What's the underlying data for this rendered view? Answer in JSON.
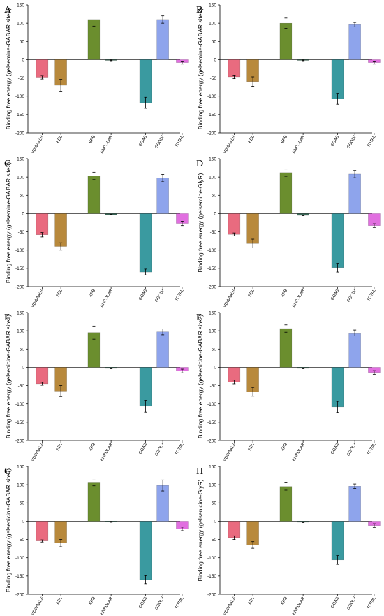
{
  "colors": {
    "VDWAALS": "#e96b7f",
    "EEL": "#b8893c",
    "EPB": "#6b8e2e",
    "ENPOLAR": "#3d6b5a",
    "GGAS": "#3a9aa0",
    "GSOLV": "#8ea4ec",
    "TOTAL": "#e16fe0"
  },
  "chart_data": [
    {
      "type": "bar",
      "panel_label": "A",
      "ylabel": "Binding free energy (gelsemine-GABAR site1)",
      "categories": [
        "VDWAALS",
        "EEL",
        "EPB",
        "ENPOLAR",
        "GGAS",
        "GSOLV",
        "TOTAL"
      ],
      "values": [
        -48,
        -70,
        110,
        -2,
        -118,
        110,
        -8
      ],
      "errors": [
        5,
        16,
        18,
        1,
        15,
        10,
        4
      ],
      "ylim": [
        -200,
        150
      ],
      "yticks": [
        "150",
        "100",
        "50",
        "0",
        "-50",
        "-100",
        "-150",
        "-200"
      ]
    },
    {
      "type": "bar",
      "panel_label": "B",
      "ylabel": "Binding free energy (gelsemine-GABAR site2)",
      "categories": [
        "VDWAALS",
        "EEL",
        "EPB",
        "ENPOLAR",
        "GGAS",
        "GSOLV",
        "TOTAL"
      ],
      "values": [
        -47,
        -60,
        100,
        -2,
        -107,
        96,
        -8
      ],
      "errors": [
        5,
        13,
        14,
        1,
        15,
        6,
        4
      ],
      "ylim": [
        -200,
        150
      ],
      "yticks": [
        "150",
        "100",
        "50",
        "0",
        "-50",
        "-100",
        "-150",
        "-200"
      ]
    },
    {
      "type": "bar",
      "panel_label": "C",
      "ylabel": "Binding free energy (gelsemine-GABAR site3)",
      "categories": [
        "VDWAALS",
        "EEL",
        "EPB",
        "ENPOLAR",
        "GGAS",
        "GSOLV",
        "TOTAL"
      ],
      "values": [
        -58,
        -90,
        103,
        -3,
        -160,
        97,
        -27
      ],
      "errors": [
        6,
        10,
        10,
        1,
        8,
        10,
        6
      ],
      "ylim": [
        -200,
        150
      ],
      "yticks": [
        "150",
        "100",
        "50",
        "0",
        "-50",
        "-100",
        "-150",
        "-200"
      ]
    },
    {
      "type": "bar",
      "panel_label": "D",
      "ylabel": "Binding free energy (gelsemine-GlyR)",
      "categories": [
        "VDWAALS",
        "EEL",
        "EPB",
        "ENPOLAR",
        "GGAS",
        "GSOLV",
        "TOTAL"
      ],
      "values": [
        -57,
        -82,
        112,
        -5,
        -148,
        108,
        -33
      ],
      "errors": [
        4,
        12,
        10,
        1,
        12,
        10,
        5
      ],
      "ylim": [
        -200,
        150
      ],
      "yticks": [
        "150",
        "100",
        "50",
        "0",
        "-50",
        "-100",
        "-150",
        "-200"
      ]
    },
    {
      "type": "bar",
      "panel_label": "E",
      "ylabel": "Binding free energy (gelsenicine-GABAR site1)",
      "categories": [
        "VDWAALS",
        "EEL",
        "EPB",
        "ENPOLAR",
        "GGAS",
        "GSOLV",
        "TOTAL"
      ],
      "values": [
        -45,
        -65,
        95,
        -3,
        -106,
        97,
        -10
      ],
      "errors": [
        4,
        15,
        18,
        1,
        16,
        8,
        5
      ],
      "ylim": [
        -200,
        150
      ],
      "yticks": [
        "150",
        "100",
        "50",
        "0",
        "-50",
        "-100",
        "-150",
        "-200"
      ]
    },
    {
      "type": "bar",
      "panel_label": "F",
      "ylabel": "Binding free energy (gelsenicine-GABAR site2)",
      "categories": [
        "VDWAALS",
        "EEL",
        "EPB",
        "ENPOLAR",
        "GGAS",
        "GSOLV",
        "TOTAL"
      ],
      "values": [
        -40,
        -67,
        106,
        -3,
        -108,
        94,
        -14
      ],
      "errors": [
        5,
        12,
        10,
        1,
        15,
        8,
        5
      ],
      "ylim": [
        -200,
        150
      ],
      "yticks": [
        "150",
        "100",
        "50",
        "0",
        "-50",
        "-100",
        "-150",
        "-200"
      ]
    },
    {
      "type": "bar",
      "panel_label": "G",
      "ylabel": "Binding free energy (gelsenicine-GABAR site3)",
      "categories": [
        "VDWAALS",
        "EEL",
        "EPB",
        "ENPOLAR",
        "GGAS",
        "GSOLV",
        "TOTAL"
      ],
      "values": [
        -54,
        -60,
        105,
        -2,
        -160,
        98,
        -21
      ],
      "errors": [
        3,
        10,
        8,
        1,
        11,
        15,
        5
      ],
      "ylim": [
        -200,
        150
      ],
      "yticks": [
        "150",
        "100",
        "50",
        "0",
        "-50",
        "-100",
        "-150",
        "-200"
      ]
    },
    {
      "type": "bar",
      "panel_label": "H",
      "ylabel": "Binding free energy (gelsenicine-GlyR)",
      "categories": [
        "VDWAALS",
        "EEL",
        "EPB",
        "ENPOLAR",
        "GGAS",
        "GSOLV",
        "TOTAL"
      ],
      "values": [
        -45,
        -65,
        95,
        -3,
        -106,
        96,
        -12
      ],
      "errors": [
        5,
        9,
        10,
        1,
        12,
        6,
        5
      ],
      "ylim": [
        -200,
        150
      ],
      "yticks": [
        "150",
        "100",
        "50",
        "0",
        "-50",
        "-100",
        "-150",
        "-200"
      ]
    }
  ]
}
